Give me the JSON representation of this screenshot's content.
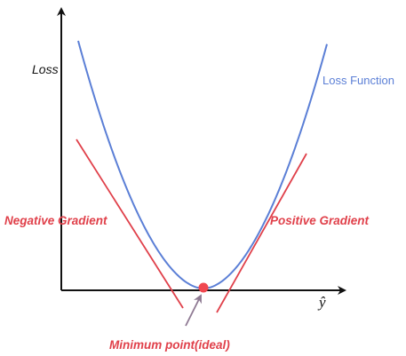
{
  "diagram": {
    "y_axis_label": "Loss",
    "x_axis_label": "ŷ",
    "curve_label": "Loss Function",
    "negative_gradient_label": "Negative Gradient",
    "positive_gradient_label": "Positive Gradient",
    "minimum_label": "Minimum point(ideal)"
  },
  "colors": {
    "curve": "#5b7fd6",
    "gradient": "#e0404a",
    "minimum_point": "#f0474f",
    "arrow": "#8f7a93",
    "axis": "#111111"
  }
}
